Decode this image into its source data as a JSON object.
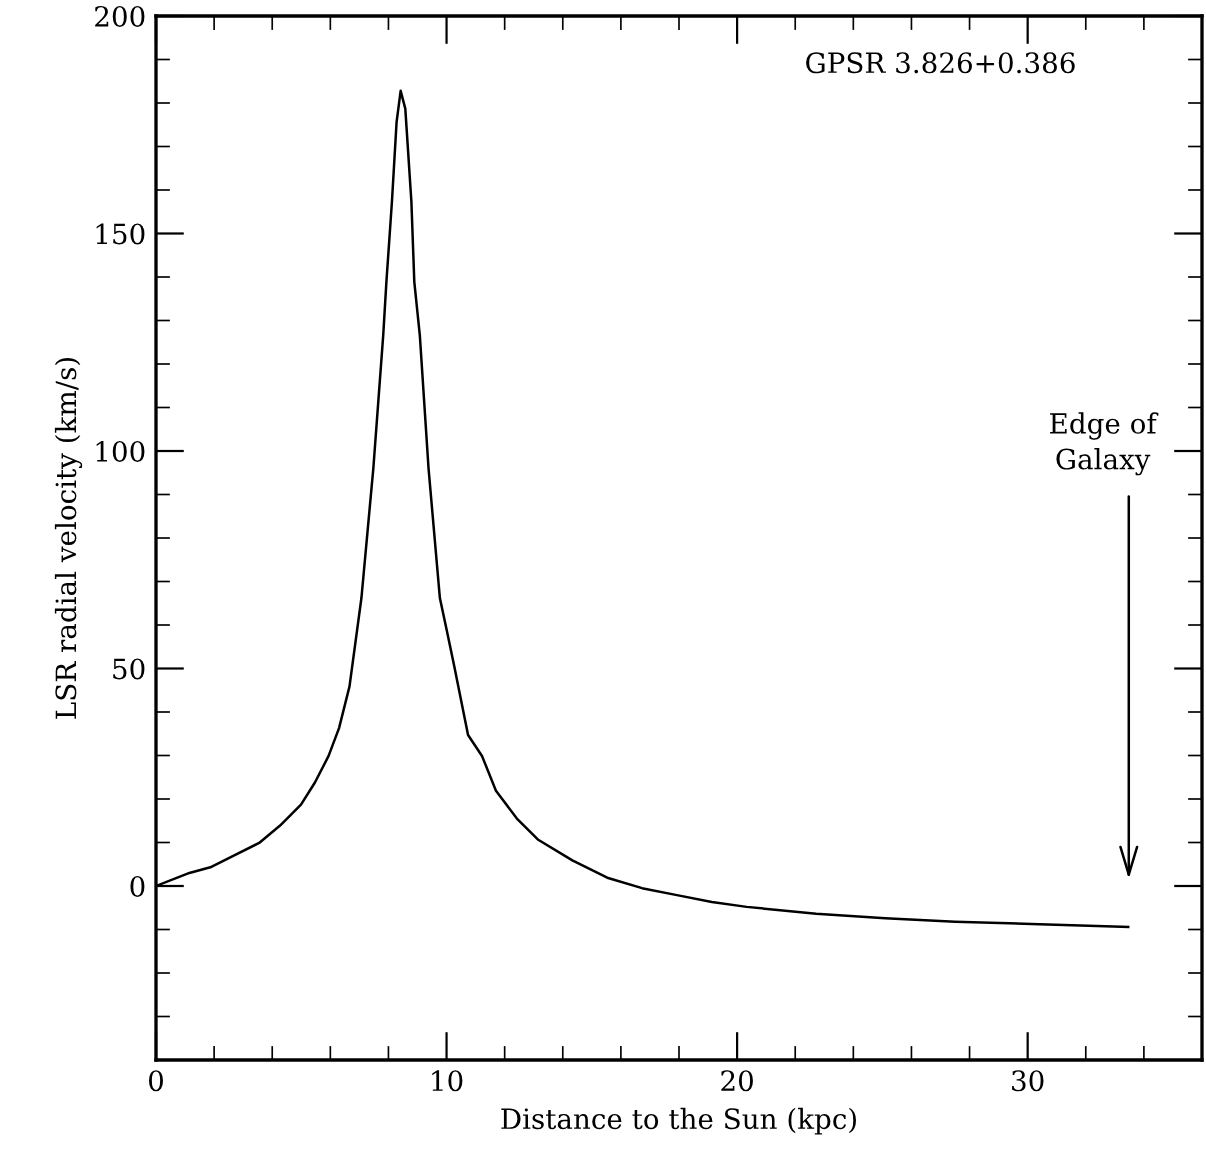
{
  "chart_data": {
    "type": "line",
    "xlabel": "Distance to the Sun (kpc)",
    "ylabel": "LSR radial velocity (km/s)",
    "xlim": [
      0,
      36
    ],
    "ylim": [
      -40,
      200
    ],
    "xticks": [
      0,
      10,
      20,
      30
    ],
    "yticks": [
      0,
      50,
      100,
      150,
      200
    ],
    "series": [
      {
        "color": "#000000",
        "x": [
          0,
          1.15,
          1.87,
          2.59,
          3.55,
          4.27,
          4.99,
          5.47,
          5.94,
          6.3,
          6.66,
          7.07,
          7.48,
          7.82,
          7.93,
          8.12,
          8.28,
          8.42,
          8.58,
          8.79,
          8.89,
          9.08,
          9.38,
          9.77,
          10.01,
          10.26,
          10.74,
          11.22,
          11.7,
          12.42,
          13.14,
          14.33,
          15.53,
          16.73,
          17.93,
          19.13,
          20.33,
          22.72,
          25.1,
          27.5,
          30.4,
          33.46
        ],
        "values": [
          0,
          3.0,
          4.3,
          6.7,
          9.9,
          13.9,
          18.7,
          23.8,
          29.9,
          36.3,
          45.9,
          66.2,
          96,
          126.6,
          138.9,
          157.3,
          175.6,
          182.8,
          178.7,
          157.3,
          138.9,
          126.6,
          96,
          66.2,
          58.7,
          50.7,
          34.7,
          29.9,
          21.9,
          15.5,
          10.7,
          5.9,
          1.9,
          -0.5,
          -2.1,
          -3.7,
          -4.8,
          -6.4,
          -7.4,
          -8.2,
          -8.8,
          -9.4
        ]
      }
    ],
    "annotations": [
      "GPSR 3.826+0.386",
      "Edge of\nGalaxy"
    ],
    "grid": false,
    "legend": false,
    "marker": "none",
    "line_style": "solid"
  }
}
